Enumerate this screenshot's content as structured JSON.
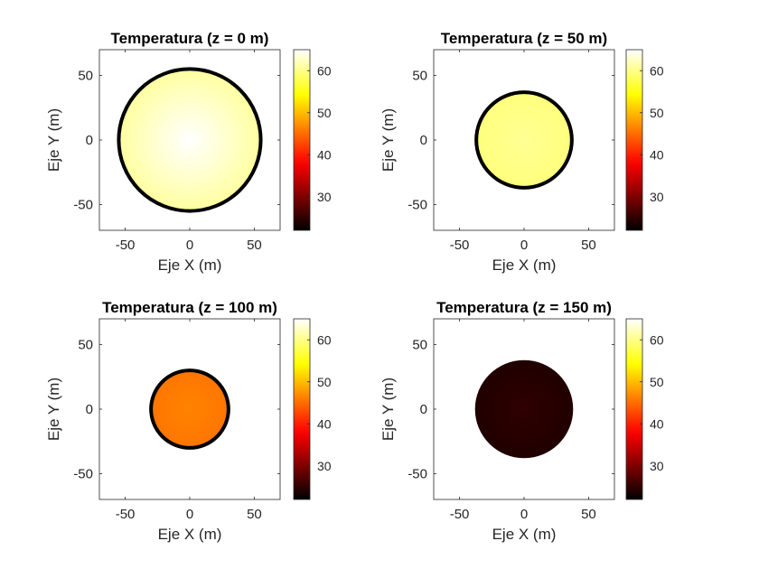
{
  "chart_data": [
    {
      "type": "heatmap",
      "title": "Temperatura (z = 0 m)",
      "xlabel": "Eje X (m)",
      "ylabel": "Eje Y (m)",
      "xlim": [
        -70,
        70
      ],
      "ylim": [
        -70,
        70
      ],
      "xticks": [
        -50,
        0,
        50
      ],
      "yticks": [
        -50,
        0,
        50
      ],
      "radius": 55,
      "center_value": 65,
      "edge_value": 61,
      "outline": true,
      "colorbar": {
        "colormap": "hot",
        "range": [
          22,
          65
        ],
        "ticks": [
          30,
          40,
          50,
          60
        ]
      }
    },
    {
      "type": "heatmap",
      "title": "Temperatura (z = 50 m)",
      "xlabel": "Eje X (m)",
      "ylabel": "Eje Y (m)",
      "xlim": [
        -70,
        70
      ],
      "ylim": [
        -70,
        70
      ],
      "xticks": [
        -50,
        0,
        50
      ],
      "yticks": [
        -50,
        0,
        50
      ],
      "radius": 37,
      "center_value": 60.5,
      "edge_value": 59.5,
      "outline": true,
      "colorbar": {
        "colormap": "hot",
        "range": [
          22,
          65
        ],
        "ticks": [
          30,
          40,
          50,
          60
        ]
      }
    },
    {
      "type": "heatmap",
      "title": "Temperatura (z = 100 m)",
      "xlabel": "Eje X (m)",
      "ylabel": "Eje Y (m)",
      "xlim": [
        -70,
        70
      ],
      "ylim": [
        -70,
        70
      ],
      "xticks": [
        -50,
        0,
        50
      ],
      "yticks": [
        -50,
        0,
        50
      ],
      "radius": 30,
      "center_value": 46.5,
      "edge_value": 45.5,
      "outline": true,
      "colorbar": {
        "colormap": "hot",
        "range": [
          22,
          65
        ],
        "ticks": [
          30,
          40,
          50,
          60
        ]
      }
    },
    {
      "type": "heatmap",
      "title": "Temperatura (z = 150 m)",
      "xlabel": "Eje X (m)",
      "ylabel": "Eje Y (m)",
      "xlim": [
        -70,
        70
      ],
      "ylim": [
        -70,
        70
      ],
      "xticks": [
        -50,
        0,
        50
      ],
      "yticks": [
        -50,
        0,
        50
      ],
      "radius": 38,
      "center_value": 25,
      "edge_value": 24,
      "outline": false,
      "colorbar": {
        "colormap": "hot",
        "range": [
          22,
          65
        ],
        "ticks": [
          30,
          40,
          50,
          60
        ]
      }
    }
  ]
}
